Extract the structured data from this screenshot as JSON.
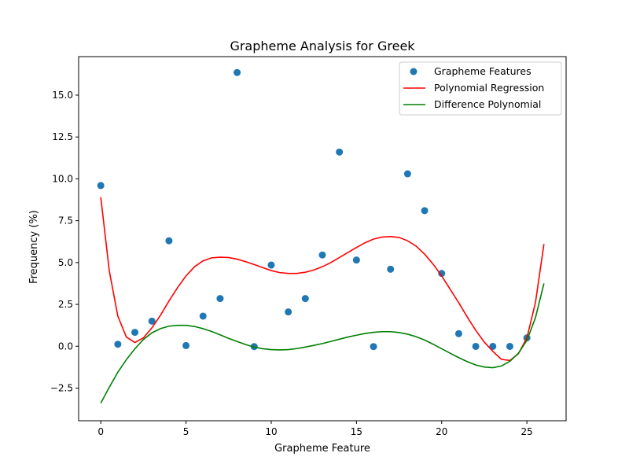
{
  "chart_data": {
    "type": "scatter",
    "title": "Grapheme Analysis for Greek",
    "xlabel": "Grapheme Feature",
    "ylabel": "Frequency (%)",
    "xlim": [
      -1.3,
      27.3
    ],
    "ylim": [
      -4.45,
      17.3
    ],
    "xticks": [
      0,
      5,
      10,
      15,
      20,
      25
    ],
    "xtick_labels": [
      "0",
      "5",
      "10",
      "15",
      "20",
      "25"
    ],
    "yticks": [
      -2.5,
      0.0,
      2.5,
      5.0,
      7.5,
      10.0,
      12.5,
      15.0
    ],
    "ytick_labels": [
      "−2.5",
      "0.0",
      "2.5",
      "5.0",
      "7.5",
      "10.0",
      "12.5",
      "15.0"
    ],
    "grid": false,
    "legend_position": "top-right",
    "series": [
      {
        "name": "Grapheme Features",
        "kind": "scatter",
        "color": "#1f77b4",
        "x": [
          0,
          1,
          2,
          3,
          4,
          5,
          6,
          7,
          8,
          9,
          10,
          11,
          12,
          13,
          14,
          15,
          16,
          17,
          18,
          19,
          20,
          21,
          22,
          23,
          24,
          25
        ],
        "y": [
          9.6,
          0.12,
          0.83,
          1.5,
          6.3,
          0.04,
          1.8,
          2.85,
          16.35,
          -0.02,
          4.85,
          2.05,
          2.85,
          5.45,
          11.6,
          5.15,
          -0.02,
          4.6,
          10.3,
          8.1,
          4.35,
          0.75,
          -0.01,
          -0.01,
          -0.01,
          0.5
        ]
      },
      {
        "name": "Polynomial Regression",
        "kind": "line",
        "color": "#ff0000",
        "x": [
          0,
          0.5,
          1,
          1.5,
          2,
          2.5,
          3,
          3.5,
          4,
          4.5,
          5,
          5.5,
          6,
          6.5,
          7,
          7.5,
          8,
          8.5,
          9,
          9.5,
          10,
          10.5,
          11,
          11.5,
          12,
          12.5,
          13,
          13.5,
          14,
          14.5,
          15,
          15.5,
          16,
          16.5,
          17,
          17.5,
          18,
          18.5,
          19,
          19.5,
          20,
          20.5,
          21,
          21.5,
          22,
          22.5,
          23,
          23.5,
          24,
          24.5,
          25,
          25.5,
          26
        ],
        "y": [
          8.9,
          4.5,
          1.8,
          0.55,
          0.22,
          0.5,
          1.1,
          1.85,
          2.7,
          3.5,
          4.2,
          4.75,
          5.1,
          5.28,
          5.32,
          5.3,
          5.2,
          5.05,
          4.88,
          4.7,
          4.52,
          4.4,
          4.35,
          4.35,
          4.42,
          4.55,
          4.75,
          5.0,
          5.3,
          5.6,
          5.9,
          6.18,
          6.4,
          6.52,
          6.55,
          6.5,
          6.3,
          5.98,
          5.5,
          4.9,
          4.2,
          3.4,
          2.6,
          1.75,
          0.95,
          0.25,
          -0.3,
          -0.78,
          -0.85,
          -0.45,
          0.5,
          2.6,
          6.1
        ]
      },
      {
        "name": "Difference Polynomial",
        "kind": "line",
        "color": "#008000",
        "x": [
          0,
          0.5,
          1,
          1.5,
          2,
          2.5,
          3,
          3.5,
          4,
          4.5,
          5,
          5.5,
          6,
          6.5,
          7,
          7.5,
          8,
          8.5,
          9,
          9.5,
          10,
          10.5,
          11,
          11.5,
          12,
          12.5,
          13,
          13.5,
          14,
          14.5,
          15,
          15.5,
          16,
          16.5,
          17,
          17.5,
          18,
          18.5,
          19,
          19.5,
          20,
          20.5,
          21,
          21.5,
          22,
          22.5,
          23,
          23.5,
          24,
          24.5,
          25,
          25.5,
          26
        ],
        "y": [
          -3.4,
          -2.45,
          -1.55,
          -0.8,
          -0.15,
          0.4,
          0.8,
          1.05,
          1.2,
          1.25,
          1.25,
          1.18,
          1.05,
          0.88,
          0.68,
          0.47,
          0.28,
          0.1,
          -0.05,
          -0.15,
          -0.2,
          -0.22,
          -0.2,
          -0.14,
          -0.05,
          0.05,
          0.16,
          0.29,
          0.42,
          0.55,
          0.66,
          0.76,
          0.83,
          0.87,
          0.87,
          0.82,
          0.72,
          0.57,
          0.37,
          0.12,
          -0.15,
          -0.42,
          -0.68,
          -0.92,
          -1.12,
          -1.24,
          -1.28,
          -1.18,
          -0.9,
          -0.42,
          0.35,
          1.7,
          3.75
        ]
      }
    ]
  }
}
